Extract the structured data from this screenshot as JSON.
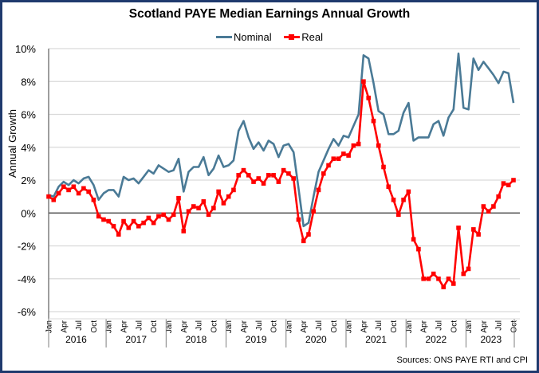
{
  "chart_data": {
    "type": "line",
    "title": "Scotland PAYE Median Earnings Annual Growth",
    "ylabel": "Annual Growth",
    "xlabel": "",
    "ylim": [
      -6,
      10
    ],
    "yticks": [
      10,
      8,
      6,
      4,
      2,
      0,
      -2,
      -4,
      -6
    ],
    "ytick_labels": [
      "10%",
      "8%",
      "6%",
      "4%",
      "2%",
      "0%",
      "-2%",
      "-4%",
      "-6%"
    ],
    "grid": true,
    "legend_position": "top-center",
    "x_start": "Jan 2016",
    "x_end": "Oct 2023",
    "month_tick_labels": [
      "Jan",
      "Apr",
      "Jul",
      "Oct"
    ],
    "years": [
      "2016",
      "2017",
      "2018",
      "2019",
      "2020",
      "2021",
      "2022",
      "2023"
    ],
    "series": [
      {
        "name": "Nominal",
        "color": "#4a7a96",
        "marker": "none",
        "values": [
          1.1,
          1.0,
          1.6,
          1.9,
          1.7,
          2.0,
          1.8,
          2.1,
          2.2,
          1.7,
          0.8,
          1.2,
          1.4,
          1.4,
          1.0,
          2.2,
          2.0,
          2.1,
          1.8,
          2.2,
          2.6,
          2.4,
          2.9,
          2.7,
          2.5,
          2.6,
          3.3,
          1.3,
          2.5,
          2.8,
          2.8,
          3.4,
          2.3,
          2.7,
          3.5,
          2.8,
          2.9,
          3.2,
          5.0,
          5.6,
          4.6,
          3.9,
          4.3,
          3.8,
          4.4,
          4.2,
          3.4,
          4.1,
          4.2,
          3.7,
          1.5,
          -0.8,
          -0.6,
          1.0,
          2.5,
          3.2,
          3.9,
          4.5,
          4.1,
          4.7,
          4.6,
          5.3,
          6.0,
          9.6,
          9.4,
          7.9,
          6.2,
          6.0,
          4.8,
          4.8,
          5.0,
          6.1,
          6.7,
          4.4,
          4.6,
          4.6,
          4.6,
          5.4,
          5.6,
          4.7,
          5.8,
          6.3,
          9.7,
          6.4,
          6.3,
          9.4,
          8.7,
          9.2,
          8.8,
          8.4,
          7.9,
          8.6,
          8.5,
          6.7
        ]
      },
      {
        "name": "Real",
        "color": "#ff0000",
        "marker": "square",
        "values": [
          1.0,
          0.8,
          1.2,
          1.6,
          1.4,
          1.6,
          1.2,
          1.5,
          1.3,
          0.8,
          -0.2,
          -0.4,
          -0.5,
          -0.8,
          -1.3,
          -0.5,
          -0.9,
          -0.5,
          -0.8,
          -0.6,
          -0.3,
          -0.6,
          -0.2,
          -0.1,
          -0.4,
          -0.1,
          0.9,
          -1.1,
          0.1,
          0.4,
          0.3,
          0.7,
          -0.1,
          0.3,
          1.3,
          0.6,
          1.0,
          1.4,
          2.3,
          2.6,
          2.3,
          1.9,
          2.1,
          1.8,
          2.3,
          2.3,
          1.9,
          2.6,
          2.4,
          2.1,
          -0.4,
          -1.7,
          -1.3,
          0.1,
          1.4,
          2.4,
          2.9,
          3.3,
          3.3,
          3.6,
          3.5,
          4.1,
          4.2,
          8.0,
          7.0,
          5.6,
          4.1,
          2.8,
          1.6,
          0.8,
          -0.1,
          0.8,
          1.3,
          -1.6,
          -2.2,
          -4.0,
          -4.0,
          -3.7,
          -4.0,
          -4.5,
          -4.0,
          -4.3,
          -0.9,
          -3.7,
          -3.4,
          -1.0,
          -1.3,
          0.4,
          0.1,
          0.4,
          1.0,
          1.8,
          1.7,
          2.0
        ]
      }
    ],
    "source_note": "Sources: ONS PAYE RTI and CPI"
  }
}
